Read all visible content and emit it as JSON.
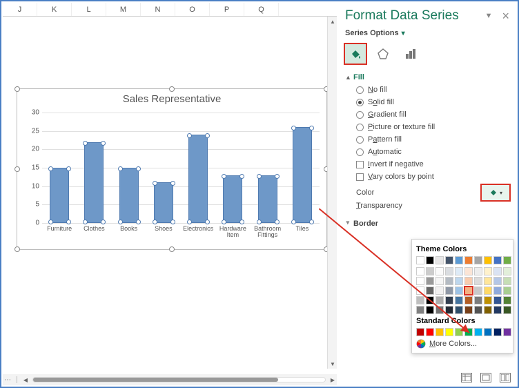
{
  "columns": [
    "J",
    "K",
    "L",
    "M",
    "N",
    "O",
    "P",
    "Q"
  ],
  "chart": {
    "title": "Sales Representative",
    "categories": [
      "Furniture",
      "Clothes",
      "Books",
      "Shoes",
      "Electronics",
      "Hardware\nItem",
      "Bathroom\nFittings",
      "Tiles"
    ],
    "values": [
      15,
      22,
      15,
      11,
      24,
      13,
      13,
      26
    ],
    "bar_color": "#6e98c8",
    "bar_border_color": "#4f7ab0",
    "ylim_max": 30,
    "ytick_step": 5,
    "grid_color": "#e0e0e0"
  },
  "pane": {
    "title": "Format Data Series",
    "sub": "Series Options",
    "fill_label": "Fill",
    "border_label": "Border",
    "opts": {
      "no_fill": "No fill",
      "solid_fill": "Solid fill",
      "gradient_fill": "Gradient fill",
      "texture_fill": "Picture or texture fill",
      "pattern_fill": "Pattern fill",
      "automatic": "Automatic",
      "invert": "Invert if negative",
      "vary": "Vary colors by point"
    },
    "color_label": "Color",
    "transparency_label": "Transparency"
  },
  "color_picker": {
    "theme_header": "Theme Colors",
    "standard_header": "Standard Colors",
    "more_label": "More Colors...",
    "theme_accents": [
      "#ffffff",
      "#000000",
      "#e7e6e6",
      "#44546a",
      "#5b9bd5",
      "#ed7d31",
      "#a5a5a5",
      "#ffc000",
      "#4472c4",
      "#70ad47"
    ],
    "theme_shades_brightness": [
      "96%",
      "88%",
      "76%",
      "58%",
      "34%"
    ],
    "standard": [
      "#c00000",
      "#ff0000",
      "#ffc000",
      "#ffff00",
      "#92d050",
      "#00b050",
      "#00b0f0",
      "#0070c0",
      "#002060",
      "#7030a0"
    ],
    "selected": "#f4b183"
  }
}
